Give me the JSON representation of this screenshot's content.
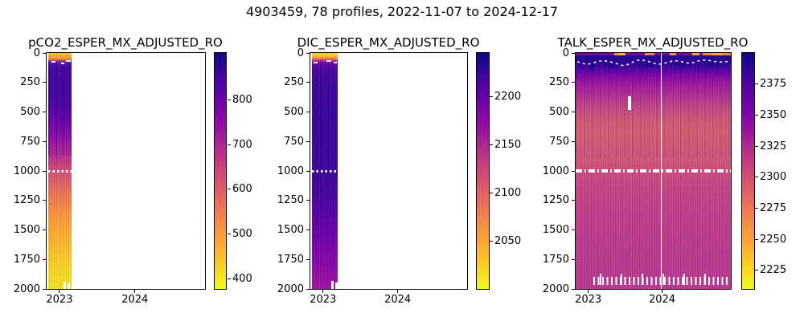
{
  "figure": {
    "title": "4903459, 78 profiles, 2022-11-07 to 2024-12-17",
    "background_color": "#ffffff",
    "text_color": "#000000"
  },
  "palette": {
    "colormap": "plasma_r",
    "plasma_stops": [
      "#0d0887",
      "#41049d",
      "#6a00a8",
      "#8f0da4",
      "#b12a90",
      "#cc4778",
      "#e16462",
      "#f2844b",
      "#fca636",
      "#fcce25",
      "#f0f921"
    ],
    "marker_color": "#ffffff"
  },
  "chart_data": [
    {
      "type": "heatmap",
      "title": "pCO2_ESPER_MX_ADJUSTED_RO",
      "xlabel": "",
      "ylabel": "",
      "x_ticks": [
        2023,
        2024
      ],
      "x_tick_labels": [
        "2023",
        "2024"
      ],
      "x_range": [
        2022.83,
        2024.93
      ],
      "y_ticks": [
        0,
        250,
        500,
        750,
        1000,
        1250,
        1500,
        1750,
        2000
      ],
      "y_range": [
        0,
        2000
      ],
      "colorbar_ticks": [
        400,
        500,
        600,
        700,
        800
      ],
      "colorbar_range": [
        377,
        905
      ],
      "data_time_extent": [
        2022.86,
        2023.17
      ],
      "profile_estimated_from_colormap": {
        "depths_m": [
          0,
          30,
          60,
          100,
          200,
          300,
          400,
          500,
          600,
          700,
          800,
          900,
          1000,
          1100,
          1250,
          1500,
          1750,
          2000
        ],
        "values": [
          430,
          465,
          700,
          855,
          865,
          860,
          845,
          810,
          775,
          740,
          690,
          645,
          615,
          590,
          545,
          485,
          435,
          395
        ]
      },
      "annotations": [
        {
          "type": "white-dotted-line",
          "depth_m": 1000
        },
        {
          "type": "white-dashes",
          "depth_m": 85
        },
        {
          "type": "white-dashes",
          "depth_m": 1950
        }
      ]
    },
    {
      "type": "heatmap",
      "title": "DIC_ESPER_MX_ADJUSTED_RO",
      "xlabel": "",
      "ylabel": "",
      "x_ticks": [
        2023,
        2024
      ],
      "x_tick_labels": [
        "2023",
        "2024"
      ],
      "x_range": [
        2022.83,
        2024.93
      ],
      "y_ticks": [
        0,
        250,
        500,
        750,
        1000,
        1250,
        1500,
        1750,
        2000
      ],
      "y_range": [
        0,
        2000
      ],
      "colorbar_ticks": [
        2050,
        2100,
        2150,
        2200
      ],
      "colorbar_range": [
        2000,
        2245
      ],
      "data_time_extent": [
        2022.86,
        2023.2
      ],
      "profile_estimated_from_colormap": {
        "depths_m": [
          0,
          30,
          60,
          100,
          200,
          300,
          400,
          600,
          800,
          1000,
          1200,
          1500,
          1750,
          2000
        ],
        "values": [
          2015,
          2050,
          2140,
          2195,
          2210,
          2225,
          2230,
          2232,
          2230,
          2222,
          2216,
          2200,
          2186,
          2172
        ]
      },
      "annotations": [
        {
          "type": "white-dotted-line",
          "depth_m": 1000
        },
        {
          "type": "white-dashes",
          "depth_m": 85
        },
        {
          "type": "white-dashes",
          "depth_m": 1950
        }
      ]
    },
    {
      "type": "heatmap",
      "title": "TALK_ESPER_MX_ADJUSTED_RO",
      "xlabel": "",
      "ylabel": "",
      "x_ticks": [
        2023,
        2024
      ],
      "x_tick_labels": [
        "2023",
        "2024"
      ],
      "x_range": [
        2022.83,
        2024.93
      ],
      "y_ticks": [
        0,
        250,
        500,
        750,
        1000,
        1250,
        1500,
        1750,
        2000
      ],
      "y_range": [
        0,
        2000
      ],
      "colorbar_ticks": [
        2225,
        2250,
        2275,
        2300,
        2325,
        2350,
        2375
      ],
      "colorbar_range": [
        2210,
        2400
      ],
      "data_time_extent": [
        2022.86,
        2024.93
      ],
      "profile_estimated_from_colormap": {
        "depths_m": [
          0,
          40,
          80,
          120,
          200,
          300,
          450,
          600,
          800,
          1000,
          1250,
          1500,
          2000
        ],
        "values": [
          2350,
          2370,
          2394,
          2380,
          2349,
          2322,
          2294,
          2291,
          2298,
          2303,
          2310,
          2316,
          2318
        ]
      },
      "annotations": [
        {
          "type": "white-dash-dot-line",
          "depth_m": 1000
        },
        {
          "type": "white-dotted-line-undulating",
          "depth_m_range": [
            55,
            110
          ],
          "note": "mixed-layer trace"
        },
        {
          "type": "white-vertical-line",
          "x": 2024.0
        },
        {
          "type": "white-gap-bar",
          "x": 2023.55,
          "depth_m_range": [
            370,
            480
          ]
        },
        {
          "type": "white-tick-marks",
          "depth_m": 1950,
          "x_extent": [
            2023.1,
            2024.9
          ]
        }
      ]
    }
  ]
}
